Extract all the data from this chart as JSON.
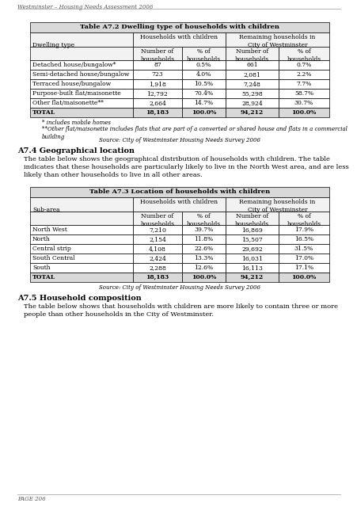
{
  "header_text": "Westminster – Housing Needs Assessment 2006",
  "page_number": "PAGE 206",
  "table1_title": "Table A7.2 Dwelling type of households with children",
  "table1_rows": [
    [
      "Detached house/bungalow*",
      "87",
      "0.5%",
      "661",
      "0.7%"
    ],
    [
      "Semi-detached house/bungalow",
      "723",
      "4.0%",
      "2,081",
      "2.2%"
    ],
    [
      "Terraced house/bungalow",
      "1,918",
      "10.5%",
      "7,248",
      "7.7%"
    ],
    [
      "Purpose-built flat/maisonette",
      "12,792",
      "70.4%",
      "55,298",
      "58.7%"
    ],
    [
      "Other flat/maisonette**",
      "2,664",
      "14.7%",
      "28,924",
      "30.7%"
    ],
    [
      "TOTAL",
      "18,183",
      "100.0%",
      "94,212",
      "100.0%"
    ]
  ],
  "table1_note1": "* includes mobile homes",
  "table1_note2": "**Other flat/maisonette includes flats that are part of a converted or shared house and flats in a commercial\nbuilding",
  "table1_source": "Source: City of Westminster Housing Needs Survey 2006",
  "section1_title": "A7.4 Geographical location",
  "section1_para": "The table below shows the geographical distribution of households with children. The table\nindicates that these households are particularly likely to live in the North West area, and are less\nlikely than other households to live in all other areas.",
  "table2_title": "Table A7.3 Location of households with children",
  "table2_rows": [
    [
      "North West",
      "7,210",
      "39.7%",
      "16,869",
      "17.9%"
    ],
    [
      "North",
      "2,154",
      "11.8%",
      "15,507",
      "16.5%"
    ],
    [
      "Central strip",
      "4,108",
      "22.6%",
      "29,692",
      "31.5%"
    ],
    [
      "South Central",
      "2,424",
      "13.3%",
      "16,031",
      "17.0%"
    ],
    [
      "South",
      "2,288",
      "12.6%",
      "16,113",
      "17.1%"
    ],
    [
      "TOTAL",
      "18,183",
      "100.0%",
      "94,212",
      "100.0%"
    ]
  ],
  "table2_source": "Source: City of Westminster Housing Needs Survey 2006",
  "section2_title": "A7.5 Household composition",
  "section2_para": "The table below shows that households with children are more likely to contain three or more\npeople than other households in the City of Westminster.",
  "col_label1": "Dwelling type",
  "col_label2": "Sub-area",
  "col_header_span1": "Households with children",
  "col_header_span2": "Remaining households in\nCity of Westminster",
  "col_sub1": "Number of\nhouseholds",
  "col_sub2": "% of\nhouseholds",
  "col_sub3": "Number of\nhouseholds",
  "col_sub4": "% of\nhouseholds",
  "bg_color": "#ffffff",
  "table_title_bg": "#d9d9d9",
  "table_header_bg": "#f2f2f2",
  "total_bg": "#d9d9d9"
}
